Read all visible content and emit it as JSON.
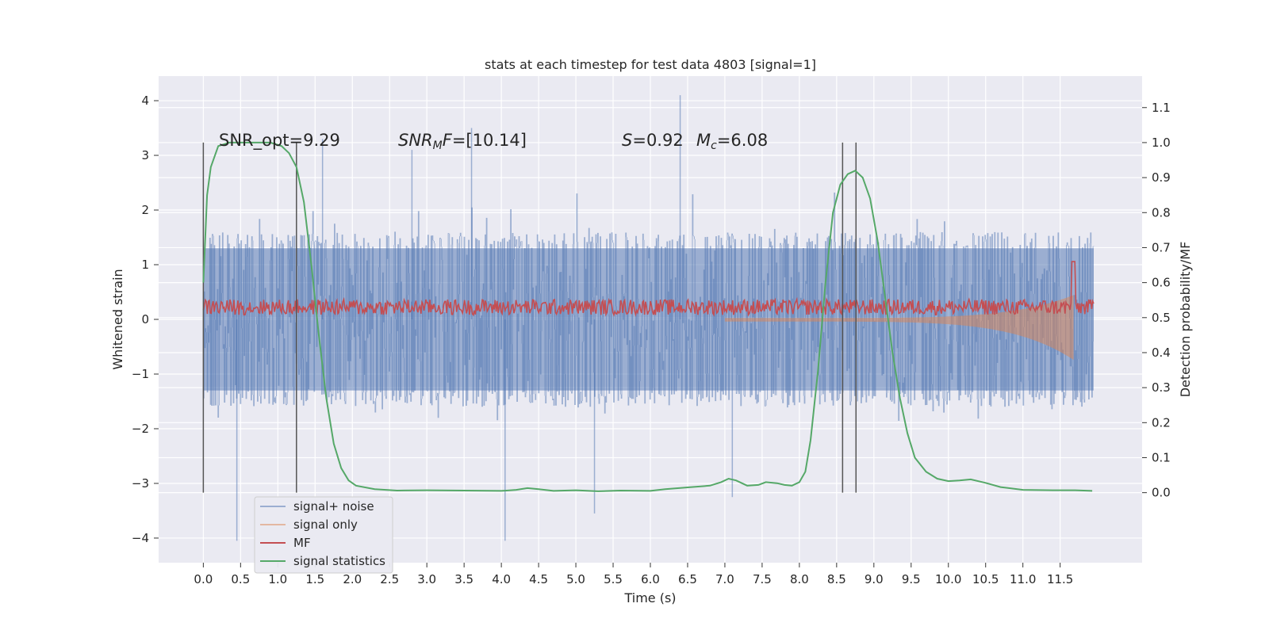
{
  "chart_data": {
    "type": "line",
    "title": "stats at each timestep for test data 4803 [signal=1]",
    "xlabel": "Time (s)",
    "ylabel": "Whitened strain",
    "ylabel_right": "Detection probability/MF",
    "xlim": [
      -0.6,
      12.6
    ],
    "ylim": [
      -4.45,
      4.45
    ],
    "ylim_right": [
      -0.2,
      1.19
    ],
    "xticks": [
      "0.0",
      "0.5",
      "1.0",
      "1.5",
      "2.0",
      "2.5",
      "3.0",
      "3.5",
      "4.0",
      "4.5",
      "5.0",
      "5.5",
      "6.0",
      "6.5",
      "7.0",
      "7.5",
      "8.0",
      "8.5",
      "9.0",
      "9.5",
      "10.0",
      "10.5",
      "11.0",
      "11.5"
    ],
    "yticks": [
      "4",
      "3",
      "2",
      "1",
      "0",
      "−1",
      "−2",
      "−3",
      "−4"
    ],
    "yticks_right": [
      "1.1",
      "1.0",
      "0.9",
      "0.8",
      "0.7",
      "0.6",
      "0.5",
      "0.4",
      "0.3",
      "0.2",
      "0.1",
      "0.0"
    ],
    "grid": true,
    "annotations": [
      {
        "text": "SNR_opt=9.29",
        "x": 0.2,
        "y": 3.3
      },
      {
        "text": "SNR_MF=[10.14]",
        "x": 2.6,
        "y": 3.3
      },
      {
        "text": "S=0.92",
        "x": 5.6,
        "y": 3.3
      },
      {
        "text": "M_c=6.08",
        "x": 6.6,
        "y": 3.3
      }
    ],
    "vertical_lines": [
      0.0,
      1.25,
      8.58,
      8.76
    ],
    "legend_placement": "lower-left",
    "series": [
      {
        "name": "signal+ noise",
        "color": "#4c72b0",
        "alpha": 0.5,
        "description_stats": {
          "x_range": [
            0,
            11.95
          ],
          "core_amplitude": 1.3,
          "peaks_up": [
            [
              6.4,
              4.1
            ],
            [
              3.6,
              3.5
            ],
            [
              1.6,
              3.3
            ],
            [
              2.8,
              3.1
            ]
          ],
          "peaks_down": [
            [
              0.45,
              -4.05
            ],
            [
              4.05,
              -4.05
            ],
            [
              5.25,
              -3.55
            ],
            [
              7.1,
              -3.25
            ]
          ]
        }
      },
      {
        "name": "signal only",
        "color": "#dd8452",
        "alpha": 0.5
      },
      {
        "name": "MF",
        "color": "#c44e52"
      },
      {
        "name": "signal statistics",
        "color": "#55a868",
        "points": [
          [
            0.0,
            0.6
          ],
          [
            0.05,
            0.85
          ],
          [
            0.1,
            0.93
          ],
          [
            0.2,
            0.99
          ],
          [
            0.35,
            1.0
          ],
          [
            0.6,
            1.0
          ],
          [
            0.9,
            1.0
          ],
          [
            1.05,
            0.99
          ],
          [
            1.15,
            0.97
          ],
          [
            1.25,
            0.93
          ],
          [
            1.35,
            0.83
          ],
          [
            1.45,
            0.65
          ],
          [
            1.55,
            0.45
          ],
          [
            1.65,
            0.27
          ],
          [
            1.75,
            0.14
          ],
          [
            1.85,
            0.07
          ],
          [
            1.95,
            0.035
          ],
          [
            2.05,
            0.02
          ],
          [
            2.3,
            0.01
          ],
          [
            2.6,
            0.006
          ],
          [
            3.0,
            0.007
          ],
          [
            3.5,
            0.006
          ],
          [
            4.0,
            0.005
          ],
          [
            4.2,
            0.008
          ],
          [
            4.35,
            0.013
          ],
          [
            4.5,
            0.01
          ],
          [
            4.7,
            0.005
          ],
          [
            5.0,
            0.007
          ],
          [
            5.3,
            0.004
          ],
          [
            5.6,
            0.006
          ],
          [
            6.0,
            0.005
          ],
          [
            6.2,
            0.01
          ],
          [
            6.5,
            0.015
          ],
          [
            6.8,
            0.02
          ],
          [
            6.95,
            0.03
          ],
          [
            7.05,
            0.04
          ],
          [
            7.15,
            0.035
          ],
          [
            7.3,
            0.02
          ],
          [
            7.45,
            0.022
          ],
          [
            7.55,
            0.03
          ],
          [
            7.7,
            0.027
          ],
          [
            7.8,
            0.022
          ],
          [
            7.9,
            0.02
          ],
          [
            8.0,
            0.03
          ],
          [
            8.08,
            0.06
          ],
          [
            8.15,
            0.15
          ],
          [
            8.25,
            0.35
          ],
          [
            8.35,
            0.6
          ],
          [
            8.45,
            0.8
          ],
          [
            8.55,
            0.88
          ],
          [
            8.65,
            0.91
          ],
          [
            8.75,
            0.92
          ],
          [
            8.85,
            0.9
          ],
          [
            8.95,
            0.84
          ],
          [
            9.05,
            0.72
          ],
          [
            9.15,
            0.56
          ],
          [
            9.25,
            0.4
          ],
          [
            9.35,
            0.27
          ],
          [
            9.45,
            0.17
          ],
          [
            9.55,
            0.1
          ],
          [
            9.7,
            0.06
          ],
          [
            9.85,
            0.04
          ],
          [
            10.0,
            0.033
          ],
          [
            10.15,
            0.035
          ],
          [
            10.3,
            0.038
          ],
          [
            10.5,
            0.028
          ],
          [
            10.7,
            0.016
          ],
          [
            11.0,
            0.008
          ],
          [
            11.4,
            0.007
          ],
          [
            11.7,
            0.007
          ],
          [
            11.93,
            0.005
          ]
        ]
      }
    ]
  }
}
